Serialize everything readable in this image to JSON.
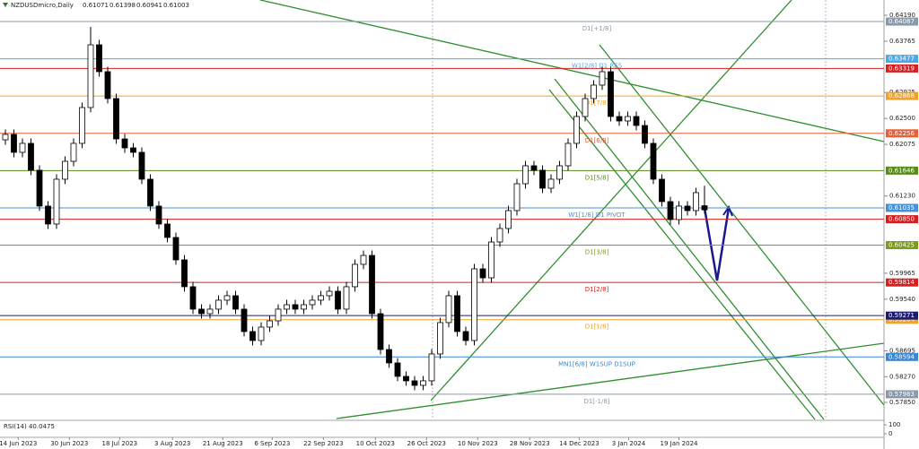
{
  "chart_data": {
    "type": "candlestick",
    "symbol": "NZDUSDmicro,Daily",
    "header_values": [
      0.61071,
      0.61398,
      0.60941,
      0.61003
    ],
    "open": [
      0.6215,
      0.62239,
      0.61945,
      0.62092,
      0.61652,
      0.61065,
      0.60771,
      0.61505,
      0.61798,
      0.62092,
      0.62679,
      0.63706,
      0.63266,
      0.62826,
      0.62165,
      0.62018,
      0.61945,
      0.61505,
      0.61065,
      0.60771,
      0.60551,
      0.60184,
      0.59744,
      0.59377,
      0.59303,
      0.59377,
      0.59524,
      0.59597,
      0.59377,
      0.5901,
      0.58863,
      0.59083,
      0.59186,
      0.59377,
      0.5945,
      0.59377,
      0.5945,
      0.59524,
      0.59597,
      0.5967,
      0.59377,
      0.59744,
      0.60111,
      0.60257,
      0.59303,
      0.58716,
      0.58496,
      0.58276,
      0.58203,
      0.58129,
      0.58203,
      0.58643,
      0.59157,
      0.59597,
      0.5901,
      0.58863,
      0.60037,
      0.5989,
      0.60477,
      0.60698,
      0.60991,
      0.61431,
      0.61725,
      0.61652,
      0.61358,
      0.61505,
      0.61725,
      0.62092,
      0.62532,
      0.62826,
      0.63046,
      0.63266,
      0.62532,
      0.62459,
      0.62532,
      0.62385,
      0.62092,
      0.61505,
      0.61138,
      0.60844,
      0.61065,
      0.60991,
      0.61071
    ],
    "high": [
      0.62319,
      0.62319,
      0.62172,
      0.62172,
      0.61732,
      0.61145,
      0.61585,
      0.61878,
      0.62172,
      0.62759,
      0.64,
      0.63786,
      0.63346,
      0.62906,
      0.62245,
      0.62098,
      0.62025,
      0.61585,
      0.61145,
      0.60851,
      0.60631,
      0.60264,
      0.59824,
      0.59457,
      0.59457,
      0.59604,
      0.59677,
      0.59677,
      0.59457,
      0.5909,
      0.59163,
      0.59266,
      0.59457,
      0.5953,
      0.5953,
      0.5953,
      0.59604,
      0.59677,
      0.5975,
      0.5975,
      0.59824,
      0.60191,
      0.60337,
      0.60337,
      0.59383,
      0.58796,
      0.58576,
      0.58356,
      0.58283,
      0.58283,
      0.58723,
      0.59237,
      0.59677,
      0.59677,
      0.5909,
      0.60117,
      0.60117,
      0.60557,
      0.60778,
      0.61071,
      0.61511,
      0.61805,
      0.61805,
      0.61732,
      0.61585,
      0.61805,
      0.62172,
      0.62612,
      0.62906,
      0.63126,
      0.63346,
      0.63346,
      0.62612,
      0.62612,
      0.62612,
      0.62465,
      0.62172,
      0.61585,
      0.61218,
      0.61145,
      0.61145,
      0.61365,
      0.61398
    ],
    "low": [
      0.6207,
      0.61865,
      0.61865,
      0.61572,
      0.60985,
      0.60691,
      0.60691,
      0.61425,
      0.61718,
      0.62012,
      0.62599,
      0.63186,
      0.62746,
      0.62085,
      0.61938,
      0.61865,
      0.61425,
      0.60985,
      0.60691,
      0.60471,
      0.60104,
      0.59664,
      0.59297,
      0.59223,
      0.59223,
      0.59297,
      0.59444,
      0.59297,
      0.5893,
      0.58783,
      0.58783,
      0.59003,
      0.59106,
      0.59297,
      0.59297,
      0.59297,
      0.5937,
      0.59444,
      0.59517,
      0.59297,
      0.59297,
      0.59664,
      0.60031,
      0.59223,
      0.58636,
      0.58416,
      0.58196,
      0.58123,
      0.58049,
      0.58049,
      0.58123,
      0.58563,
      0.59077,
      0.5893,
      0.58783,
      0.58783,
      0.5981,
      0.5981,
      0.60397,
      0.60618,
      0.60911,
      0.61351,
      0.61572,
      0.61278,
      0.61278,
      0.61425,
      0.61645,
      0.62012,
      0.62452,
      0.62746,
      0.62966,
      0.62452,
      0.62379,
      0.62379,
      0.62305,
      0.62012,
      0.61425,
      0.61058,
      0.60764,
      0.60764,
      0.60911,
      0.60911,
      0.60941
    ],
    "close": [
      0.62239,
      0.61945,
      0.62092,
      0.61652,
      0.61065,
      0.60771,
      0.61505,
      0.61798,
      0.62092,
      0.62679,
      0.63706,
      0.63266,
      0.62826,
      0.62165,
      0.62018,
      0.61945,
      0.61505,
      0.61065,
      0.60771,
      0.60551,
      0.60184,
      0.59744,
      0.59377,
      0.59303,
      0.59377,
      0.59524,
      0.59597,
      0.59377,
      0.5901,
      0.58863,
      0.59083,
      0.59186,
      0.59377,
      0.5945,
      0.59377,
      0.5945,
      0.59524,
      0.59597,
      0.5967,
      0.59377,
      0.59744,
      0.60111,
      0.60257,
      0.59303,
      0.58716,
      0.58496,
      0.58276,
      0.58203,
      0.58129,
      0.58203,
      0.58643,
      0.59157,
      0.59597,
      0.5901,
      0.58863,
      0.60037,
      0.5989,
      0.60477,
      0.60698,
      0.60991,
      0.61431,
      0.61725,
      0.61652,
      0.61358,
      0.61505,
      0.61725,
      0.62092,
      0.62532,
      0.62826,
      0.63046,
      0.63266,
      0.62532,
      0.62459,
      0.62532,
      0.62385,
      0.62092,
      0.61505,
      0.61138,
      0.60844,
      0.61065,
      0.60991,
      0.61285,
      0.61003
    ],
    "ylim": [
      0.57571,
      0.6444
    ],
    "yticks": [
      {
        "value": 0.6419,
        "label": "0.64190"
      },
      0.63765,
      0.62925,
      {
        "value": 0.625,
        "label": "0.62500"
      },
      0.62075,
      {
        "value": 0.6123,
        "label": "0.61230"
      },
      0.59965,
      {
        "value": 0.5954,
        "label": "0.59540"
      },
      0.58695,
      {
        "value": 0.5827,
        "label": "0.58270"
      },
      {
        "value": 0.5785,
        "label": "0.57850"
      }
    ],
    "xticks": [
      {
        "value": 1.5,
        "label": "14 Jun 2023"
      },
      {
        "value": 7.5,
        "label": "30 Jun 2023"
      },
      {
        "value": 13.4,
        "label": "18 Jul 2023"
      },
      {
        "value": 19.6,
        "label": "3 Aug 2023"
      },
      {
        "value": 25.5,
        "label": "21 Aug 2023"
      },
      {
        "value": 31.3,
        "label": "6 Sep 2023"
      },
      {
        "value": 37.3,
        "label": "22 Sep 2023"
      },
      {
        "value": 43.4,
        "label": "10 Oct 2023"
      },
      {
        "value": 49.4,
        "label": "26 Oct 2023"
      },
      {
        "value": 55.4,
        "label": "10 Nov 2023"
      },
      {
        "value": 61.5,
        "label": "28 Nov 2023"
      },
      {
        "value": 67.3,
        "label": "14 Dec 2023"
      },
      {
        "value": 73.1,
        "label": "3 Jan 2024"
      },
      {
        "value": 79,
        "label": "19 Jan 2024"
      }
    ],
    "levels": [
      {
        "value": 0.64087,
        "name": "D1[+1/8]",
        "color": "#8a9aab"
      },
      {
        "value": 0.63477,
        "name": "W1[2/8] D1 RES",
        "color": "#4fa8e6"
      },
      {
        "value": 0.63319,
        "color": "#d42020"
      },
      {
        "value": 0.62868,
        "name": "D1[7/8]",
        "color": "#f0a32c"
      },
      {
        "value": 0.62256,
        "name": "D1[6/8]",
        "color": "#e8603a"
      },
      {
        "value": 0.61646,
        "name": "D1[5/8]",
        "color": "#5a8a1e"
      },
      {
        "value": 0.61035,
        "name": "W1[1/8] D1 PIVOT",
        "color": "#4a90d9"
      },
      {
        "value": 0.6085,
        "label": "0.60850",
        "color": "#d42020"
      },
      {
        "value": 0.60425,
        "name": "D1[3/8]",
        "color": "#7a9a20"
      },
      {
        "value": 0.59814,
        "name": "D1[2/8]",
        "color": "#d42020"
      },
      {
        "value": 0.59204,
        "name": "D1[1/8]",
        "color": "#f0a32c"
      },
      {
        "value": 0.59271,
        "color": "#1c1c6e"
      },
      {
        "value": 0.58594,
        "name": "MN1[6/8] W1SUP D1SUP",
        "color": "#3a86d0"
      },
      {
        "value": 0.57983,
        "name": "D1[-1/8]",
        "color": "#8a9aab"
      }
    ],
    "indicator": {
      "label": "RSI(14) 40.0475",
      "yticks": [
        100,
        0
      ]
    }
  }
}
